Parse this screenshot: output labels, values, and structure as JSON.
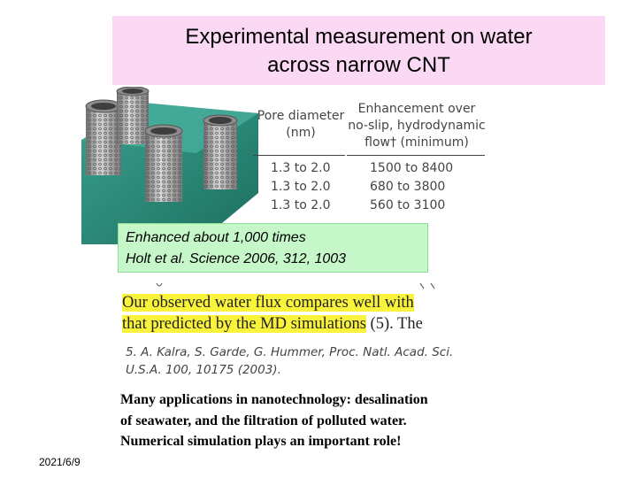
{
  "title": {
    "line1": "Experimental measurement on water",
    "line2": "across narrow CNT"
  },
  "table": {
    "header_pore": "Pore diameter\n(nm)",
    "header_enhancement": "Enhancement over\nno-slip, hydrodynamic\nflow† (minimum)",
    "rows": [
      {
        "pore": "1.3  to  2.0",
        "enhancement": "1500  to  8400"
      },
      {
        "pore": "1.3  to  2.0",
        "enhancement": "680  to  3800"
      },
      {
        "pore": "1.3  to  2.0",
        "enhancement": "560  to  3100"
      }
    ]
  },
  "highlight": {
    "line1": "Enhanced about 1,000 times",
    "line2": "Holt et al. Science  2006, 312, 1003"
  },
  "quote": {
    "part1": "Our observed water flux compares well with",
    "part2": "that predicted by the MD simulations",
    "part3": " (5). The"
  },
  "reference": {
    "line1": "5.  A. Kalra, S. Garde, G. Hummer, Proc. Natl. Acad. Sci.",
    "line2": "U.S.A. 100, 10175 (2003)."
  },
  "applications": {
    "line1": "Many applications in nanotechnology: desalination",
    "line2": "of seawater, and the filtration of polluted water.",
    "line3": "Numerical simulation plays an important role!"
  },
  "date": "2021/6/9"
}
